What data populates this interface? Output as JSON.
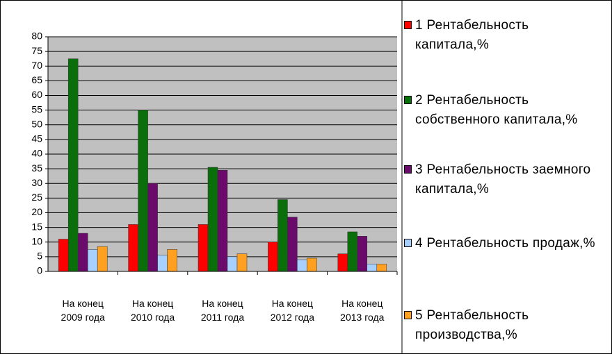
{
  "chart_data": {
    "type": "bar",
    "categories": [
      "На конец 2009 года",
      "На конец 2010 года",
      "На конец 2011 года",
      "На конец 2012 года",
      "На конец 2013 года"
    ],
    "series": [
      {
        "name": "1 Рентабельность капитала,%",
        "color": "#ff0000",
        "values": [
          11,
          16,
          16,
          10,
          6
        ]
      },
      {
        "name": "2 Рентабельность собственного капитала,%",
        "color": "#0a6e0a",
        "values": [
          72.5,
          55,
          35.5,
          24.5,
          13.5
        ]
      },
      {
        "name": "3 Рентабельность заемного капитала,%",
        "color": "#6a0a6a",
        "values": [
          13,
          30,
          34.5,
          18.5,
          12
        ]
      },
      {
        "name": "4 Рентабельность продаж,%",
        "color": "#a8d0ff",
        "values": [
          7.5,
          5.5,
          5,
          4,
          2.5
        ]
      },
      {
        "name": "5 Рентабельность производства,%",
        "color": "#ffa020",
        "values": [
          8.5,
          7.5,
          6,
          4.5,
          2.5
        ]
      }
    ],
    "ylim": [
      0,
      80
    ],
    "yticks": [
      0,
      5,
      10,
      15,
      20,
      25,
      30,
      35,
      40,
      45,
      50,
      55,
      60,
      65,
      70,
      75,
      80
    ],
    "grid": true,
    "legend": "right"
  }
}
